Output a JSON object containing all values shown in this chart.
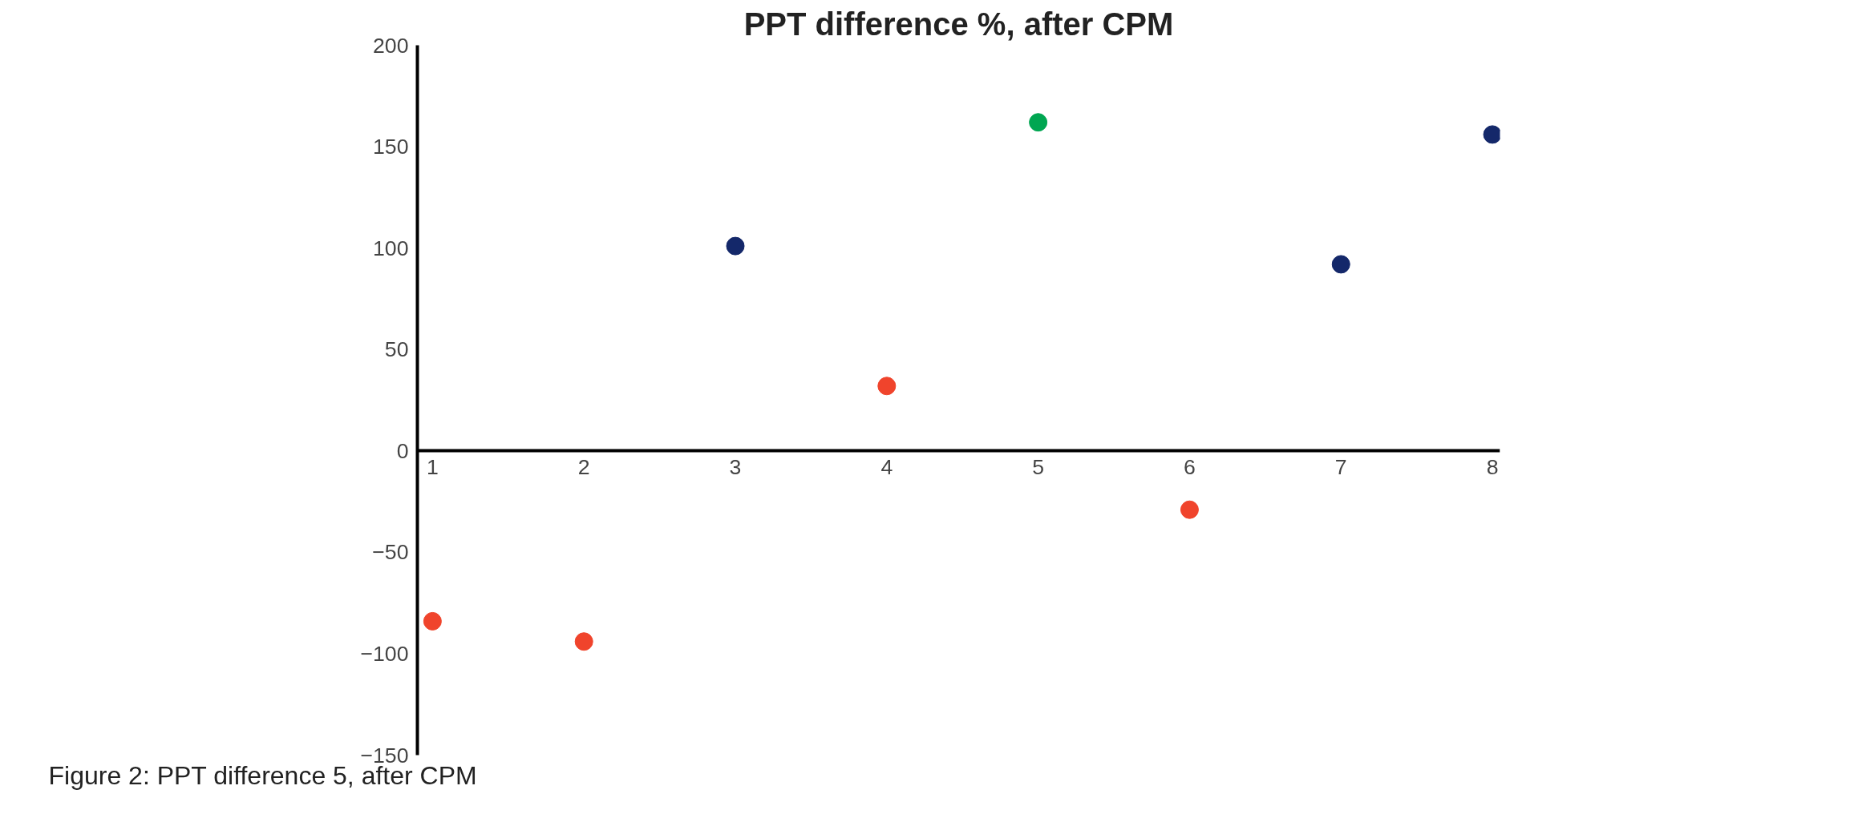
{
  "chart_data": {
    "type": "scatter",
    "title": "PPT difference %, after CPM",
    "x": [
      1,
      2,
      3,
      4,
      5,
      6,
      7,
      8
    ],
    "series": [
      {
        "color": "#f0442c",
        "values": [
          -84,
          -94,
          null,
          32,
          null,
          -29,
          null,
          null
        ]
      },
      {
        "color": "#14286a",
        "values": [
          null,
          null,
          101,
          null,
          null,
          null,
          92,
          156
        ]
      },
      {
        "color": "#00a651",
        "values": [
          null,
          null,
          null,
          null,
          162,
          null,
          null,
          null
        ]
      }
    ],
    "xlim": [
      0.9,
      8.05
    ],
    "xticks": [
      1,
      2,
      3,
      4,
      5,
      6,
      7,
      8
    ],
    "ylim": [
      -150,
      200
    ],
    "yticks": [
      -150,
      -100,
      -50,
      0,
      50,
      100,
      150,
      200
    ],
    "grid": false,
    "marker": "circle",
    "annotations": [
      "Figure 2: PPT difference 5, after CPM"
    ]
  }
}
